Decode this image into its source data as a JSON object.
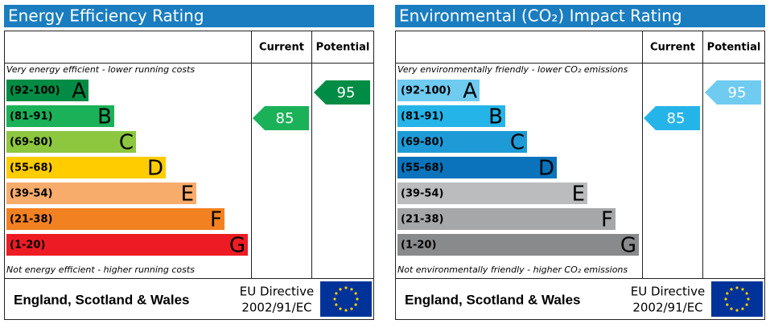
{
  "chart_data": [
    {
      "type": "epc",
      "title": "Energy Efficiency Rating",
      "columns": [
        "Current",
        "Potential"
      ],
      "top_note": "Very energy efficient - lower running costs",
      "bottom_note": "Not energy efficient - higher running costs",
      "bands": [
        {
          "range": "(92-100)",
          "letter": "A",
          "color": "#008c44"
        },
        {
          "range": "(81-91)",
          "letter": "B",
          "color": "#1bb159"
        },
        {
          "range": "(69-80)",
          "letter": "C",
          "color": "#8dc63f"
        },
        {
          "range": "(55-68)",
          "letter": "D",
          "color": "#ffcc00"
        },
        {
          "range": "(39-54)",
          "letter": "E",
          "color": "#f7ac6b"
        },
        {
          "range": "(21-38)",
          "letter": "F",
          "color": "#f28122"
        },
        {
          "range": "(1-20)",
          "letter": "G",
          "color": "#ed1c24"
        }
      ],
      "current": 85,
      "potential": 95,
      "footer": {
        "region": "England, Scotland & Wales",
        "directive": "EU Directive",
        "code": "2002/91/EC"
      }
    },
    {
      "type": "epc",
      "title": "Environmental (CO₂) Impact Rating",
      "columns": [
        "Current",
        "Potential"
      ],
      "top_note": "Very environmentally friendly - lower CO₂ emissions",
      "bottom_note": "Not environmentally friendly - higher CO₂ emissions",
      "bands": [
        {
          "range": "(92-100)",
          "letter": "A",
          "color": "#6fcbf0"
        },
        {
          "range": "(81-91)",
          "letter": "B",
          "color": "#25b4e8"
        },
        {
          "range": "(69-80)",
          "letter": "C",
          "color": "#1e9bd7"
        },
        {
          "range": "(55-68)",
          "letter": "D",
          "color": "#0a73bb"
        },
        {
          "range": "(39-54)",
          "letter": "E",
          "color": "#bbbcbe"
        },
        {
          "range": "(21-38)",
          "letter": "F",
          "color": "#a6a7a9"
        },
        {
          "range": "(1-20)",
          "letter": "G",
          "color": "#898a8c"
        }
      ],
      "current": 85,
      "potential": 95,
      "footer": {
        "region": "England, Scotland & Wales",
        "directive": "EU Directive",
        "code": "2002/91/EC"
      }
    }
  ]
}
